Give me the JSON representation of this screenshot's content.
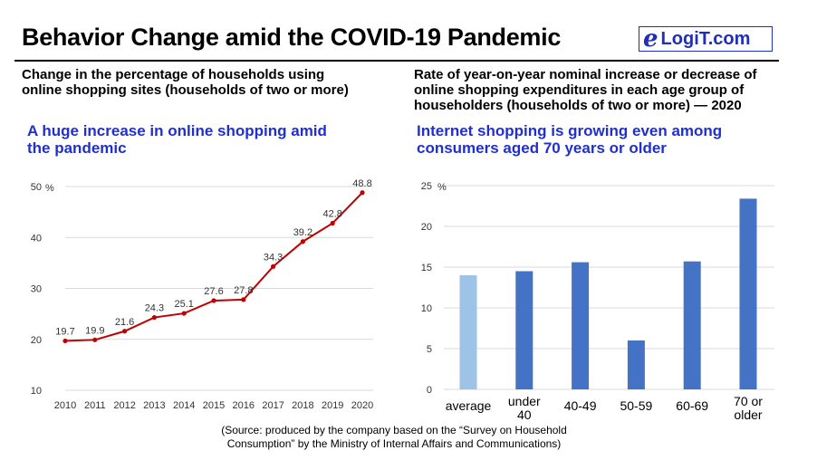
{
  "header": {
    "title": "Behavior Change amid the COVID-19 Pandemic",
    "logo_e": "e",
    "logo_text": "LogiT.com"
  },
  "left": {
    "subtitle_line1": "Change in the percentage of households using",
    "subtitle_line2": "online shopping sites (households of two or more)",
    "highlight_line1": "A huge increase in online shopping amid",
    "highlight_line2": "the pandemic"
  },
  "right": {
    "subtitle_line1": "Rate of year-on-year nominal increase or decrease of",
    "subtitle_line2": "online shopping expenditures in each age group of",
    "subtitle_line3": "householders (households of two or more) — 2020",
    "highlight_line1": "Internet shopping is growing even among",
    "highlight_line2": "consumers aged 70 years or older"
  },
  "footer": {
    "source_line1": "(Source: produced by the company based on the “Survey on Household",
    "source_line2": "Consumption” by the Ministry of Internal Affairs and Communications)"
  },
  "colors": {
    "line": "#c00000",
    "bar": "#4472c4",
    "bar_light": "#9dc3e6",
    "highlight": "#1f2fd0",
    "grid": "#d9d9d9"
  },
  "chart_data": [
    {
      "type": "line",
      "unit": "%",
      "x": [
        "2010",
        "2011",
        "2012",
        "2013",
        "2014",
        "2015",
        "2016",
        "2017",
        "2018",
        "2019",
        "2020"
      ],
      "series": [
        {
          "values": [
            19.7,
            19.9,
            21.6,
            24.3,
            25.1,
            27.6,
            27.8,
            34.3,
            39.2,
            42.8,
            48.8
          ]
        }
      ],
      "ylim": [
        10,
        50
      ],
      "yticks": [
        10,
        20,
        30,
        40,
        50
      ],
      "grid": true,
      "data_labels": true
    },
    {
      "type": "bar",
      "unit": "%",
      "categories": [
        {
          "line1": "average",
          "line2": ""
        },
        {
          "line1": "under",
          "line2": "40"
        },
        {
          "line1": "40-49",
          "line2": ""
        },
        {
          "line1": "50-59",
          "line2": ""
        },
        {
          "line1": "60-69",
          "line2": ""
        },
        {
          "line1": "70 or",
          "line2": "older"
        }
      ],
      "values": [
        14.0,
        14.5,
        15.6,
        6.0,
        15.7,
        23.4
      ],
      "ylim": [
        0,
        25
      ],
      "yticks": [
        0,
        5,
        10,
        15,
        20,
        25
      ],
      "grid": true,
      "highlight_first": true
    }
  ]
}
